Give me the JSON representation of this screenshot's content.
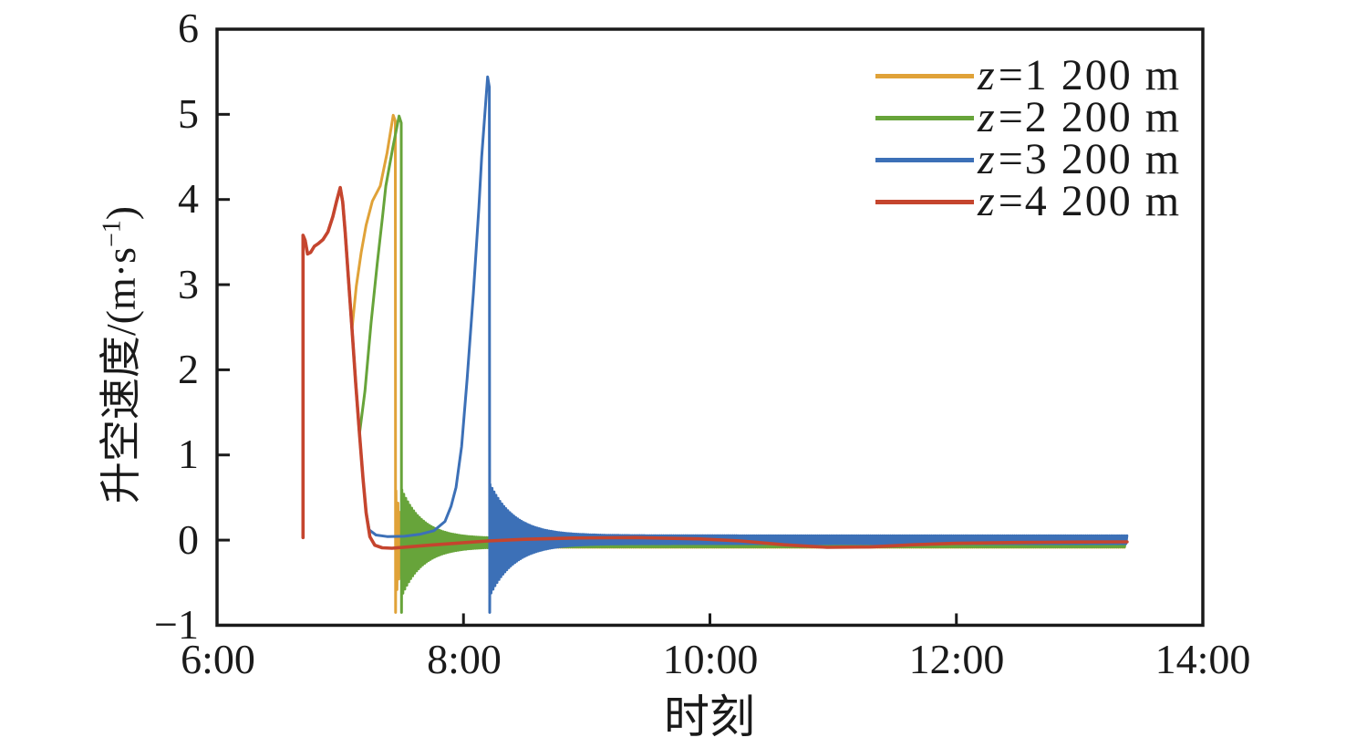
{
  "figure": {
    "xlabel": "时刻",
    "ylabel_main": "升空速度/(m·s",
    "ylabel_sup": "−1",
    "ylabel_close": ")",
    "x_tick_labels": [
      "6:00",
      "8:00",
      "10:00",
      "12:00",
      "14:00"
    ],
    "y_tick_labels": [
      "−1",
      "0",
      "1",
      "2",
      "3",
      "4",
      "5",
      "6"
    ]
  },
  "legend": {
    "rows": [
      {
        "var": "z",
        "rest": "=1 200 m"
      },
      {
        "var": "z",
        "rest": "=2 200 m"
      },
      {
        "var": "z",
        "rest": "=3 200 m"
      },
      {
        "var": "z",
        "rest": "=4 200 m"
      }
    ]
  },
  "chart_data": {
    "type": "line",
    "title": "",
    "xlabel": "时刻",
    "ylabel": "升空速度/(m·s⁻¹)",
    "x_axis": {
      "tick_labels": [
        "6:00",
        "8:00",
        "10:00",
        "12:00",
        "14:00"
      ],
      "range_hours": [
        6,
        14
      ],
      "data_end_hour": 13.39
    },
    "y_axis": {
      "ticks": [
        -1,
        0,
        1,
        2,
        3,
        4,
        5,
        6
      ],
      "ylim": [
        -1,
        6
      ]
    },
    "grid": false,
    "legend_position": "top-right",
    "frame_color": "#1a1a1a",
    "series": [
      {
        "name": "z=1 200 m",
        "color": "#E0A238",
        "points": [
          [
            6.698,
            0.03
          ],
          [
            6.698,
            3.58
          ],
          [
            6.715,
            3.52
          ],
          [
            6.735,
            3.36
          ],
          [
            6.76,
            3.38
          ],
          [
            6.79,
            3.45
          ],
          [
            6.82,
            3.48
          ],
          [
            6.86,
            3.53
          ],
          [
            6.9,
            3.62
          ],
          [
            6.94,
            3.8
          ],
          [
            6.97,
            3.98
          ],
          [
            7.0,
            4.14
          ],
          [
            7.02,
            3.97
          ],
          [
            7.04,
            3.62
          ],
          [
            7.065,
            3.1
          ],
          [
            7.095,
            2.48
          ],
          [
            7.13,
            2.98
          ],
          [
            7.17,
            3.38
          ],
          [
            7.21,
            3.7
          ],
          [
            7.26,
            3.98
          ],
          [
            7.325,
            4.16
          ],
          [
            7.38,
            4.55
          ],
          [
            7.43,
            4.99
          ],
          [
            7.447,
            4.92
          ],
          [
            7.449,
            -0.85
          ]
        ],
        "oscillation": {
          "from": 7.452,
          "to": 13.375,
          "dt": 0.008,
          "center": -0.04,
          "amp_start": 0.62,
          "tau_hours": 0.055,
          "amp_floor": 0.045
        }
      },
      {
        "name": "z=2 200 m",
        "color": "#67A43A",
        "points": [
          [
            6.698,
            0.03
          ],
          [
            6.698,
            3.58
          ],
          [
            6.715,
            3.52
          ],
          [
            6.735,
            3.36
          ],
          [
            6.76,
            3.38
          ],
          [
            6.79,
            3.45
          ],
          [
            6.82,
            3.48
          ],
          [
            6.86,
            3.53
          ],
          [
            6.9,
            3.62
          ],
          [
            6.94,
            3.8
          ],
          [
            6.97,
            3.98
          ],
          [
            7.0,
            4.14
          ],
          [
            7.02,
            3.97
          ],
          [
            7.04,
            3.62
          ],
          [
            7.065,
            3.1
          ],
          [
            7.095,
            2.48
          ],
          [
            7.125,
            1.85
          ],
          [
            7.156,
            1.25
          ],
          [
            7.2,
            1.75
          ],
          [
            7.25,
            2.55
          ],
          [
            7.3,
            3.25
          ],
          [
            7.345,
            3.82
          ],
          [
            7.37,
            4.16
          ],
          [
            7.425,
            4.6
          ],
          [
            7.477,
            4.98
          ],
          [
            7.495,
            4.9
          ],
          [
            7.497,
            -0.85
          ]
        ],
        "oscillation": {
          "from": 7.5,
          "to": 13.378,
          "dt": 0.008,
          "center": -0.03,
          "amp_start": 0.62,
          "tau_hours": 0.17,
          "amp_floor": 0.05
        }
      },
      {
        "name": "z=3 200 m",
        "color": "#3C70B7",
        "points": [
          [
            6.698,
            0.03
          ],
          [
            6.698,
            3.58
          ],
          [
            6.715,
            3.52
          ],
          [
            6.735,
            3.36
          ],
          [
            6.76,
            3.38
          ],
          [
            6.79,
            3.45
          ],
          [
            6.82,
            3.48
          ],
          [
            6.86,
            3.53
          ],
          [
            6.9,
            3.62
          ],
          [
            6.94,
            3.8
          ],
          [
            6.97,
            3.98
          ],
          [
            7.0,
            4.14
          ],
          [
            7.02,
            3.97
          ],
          [
            7.04,
            3.62
          ],
          [
            7.065,
            3.1
          ],
          [
            7.095,
            2.48
          ],
          [
            7.125,
            1.85
          ],
          [
            7.156,
            1.25
          ],
          [
            7.185,
            0.72
          ],
          [
            7.21,
            0.32
          ],
          [
            7.235,
            0.12
          ],
          [
            7.29,
            0.06
          ],
          [
            7.38,
            0.042
          ],
          [
            7.52,
            0.045
          ],
          [
            7.65,
            0.07
          ],
          [
            7.76,
            0.11
          ],
          [
            7.85,
            0.22
          ],
          [
            7.9,
            0.4
          ],
          [
            7.94,
            0.62
          ],
          [
            7.985,
            1.1
          ],
          [
            8.03,
            1.9
          ],
          [
            8.08,
            2.9
          ],
          [
            8.125,
            3.9
          ],
          [
            8.148,
            4.5
          ],
          [
            8.196,
            5.44
          ],
          [
            8.21,
            5.32
          ],
          [
            8.213,
            -0.85
          ]
        ],
        "oscillation": {
          "from": 8.216,
          "to": 13.385,
          "dt": 0.008,
          "center": 0.005,
          "amp_start": 0.65,
          "tau_hours": 0.2,
          "amp_floor": 0.048
        }
      },
      {
        "name": "z=4 200 m",
        "color": "#C5452E",
        "points": [
          [
            6.698,
            0.03
          ],
          [
            6.698,
            3.58
          ],
          [
            6.715,
            3.52
          ],
          [
            6.735,
            3.36
          ],
          [
            6.76,
            3.38
          ],
          [
            6.79,
            3.45
          ],
          [
            6.82,
            3.48
          ],
          [
            6.86,
            3.53
          ],
          [
            6.9,
            3.62
          ],
          [
            6.94,
            3.8
          ],
          [
            6.97,
            3.98
          ],
          [
            7.0,
            4.14
          ],
          [
            7.02,
            3.97
          ],
          [
            7.04,
            3.62
          ],
          [
            7.065,
            3.1
          ],
          [
            7.095,
            2.48
          ],
          [
            7.125,
            1.85
          ],
          [
            7.156,
            1.25
          ],
          [
            7.185,
            0.72
          ],
          [
            7.21,
            0.32
          ],
          [
            7.24,
            0.04
          ],
          [
            7.28,
            -0.06
          ],
          [
            7.34,
            -0.09
          ],
          [
            7.42,
            -0.095
          ],
          [
            7.55,
            -0.08
          ],
          [
            7.72,
            -0.06
          ],
          [
            7.95,
            -0.035
          ],
          [
            8.2,
            -0.01
          ],
          [
            8.5,
            0.01
          ],
          [
            8.9,
            0.025
          ],
          [
            9.4,
            0.03
          ],
          [
            9.9,
            0.015
          ],
          [
            10.25,
            -0.01
          ],
          [
            10.6,
            -0.055
          ],
          [
            10.95,
            -0.085
          ],
          [
            11.3,
            -0.08
          ],
          [
            11.65,
            -0.055
          ],
          [
            12.0,
            -0.038
          ],
          [
            12.5,
            -0.028
          ],
          [
            13.0,
            -0.022
          ],
          [
            13.385,
            -0.02
          ]
        ],
        "oscillation": null
      }
    ]
  }
}
